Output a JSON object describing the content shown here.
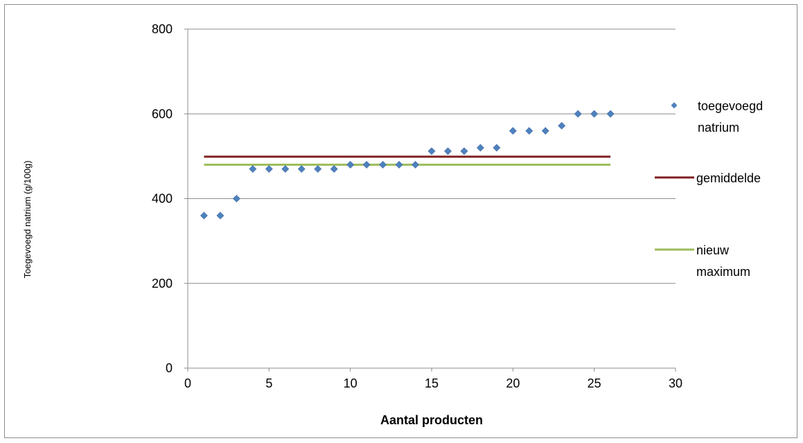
{
  "chart_data": {
    "type": "scatter",
    "title": "",
    "xlabel": "Aantal producten",
    "ylabel": "Toegevoegd natrium (g/100g)",
    "xlim": [
      0,
      30
    ],
    "ylim": [
      0,
      800
    ],
    "xticks": [
      0,
      5,
      10,
      15,
      20,
      25,
      30
    ],
    "yticks": [
      0,
      200,
      400,
      600,
      800
    ],
    "grid": "horizontal",
    "legend_position": "right",
    "series": [
      {
        "name": "toegevoegd natrium",
        "kind": "scatter",
        "marker": "diamond",
        "color": "#4f81bd",
        "x": [
          1,
          2,
          3,
          4,
          5,
          6,
          7,
          8,
          9,
          10,
          11,
          12,
          13,
          14,
          15,
          16,
          17,
          18,
          19,
          20,
          21,
          22,
          23,
          24,
          25,
          26
        ],
        "y": [
          360,
          360,
          400,
          470,
          470,
          470,
          470,
          470,
          470,
          480,
          480,
          480,
          480,
          480,
          512,
          512,
          512,
          520,
          520,
          560,
          560,
          560,
          572,
          600,
          600,
          600
        ]
      },
      {
        "name": "gemiddelde",
        "kind": "line",
        "color": "#7f1f1f",
        "x": [
          1,
          26
        ],
        "y": [
          499,
          499
        ]
      },
      {
        "name": "nieuw maximum",
        "kind": "line",
        "color": "#9bbb59",
        "x": [
          1,
          26
        ],
        "y": [
          480,
          480
        ]
      }
    ],
    "legend": [
      {
        "lines": [
          "toegevoegd",
          "natrium"
        ]
      },
      {
        "lines": [
          "gemiddelde"
        ]
      },
      {
        "lines": [
          "nieuw",
          "maximum"
        ]
      }
    ]
  }
}
